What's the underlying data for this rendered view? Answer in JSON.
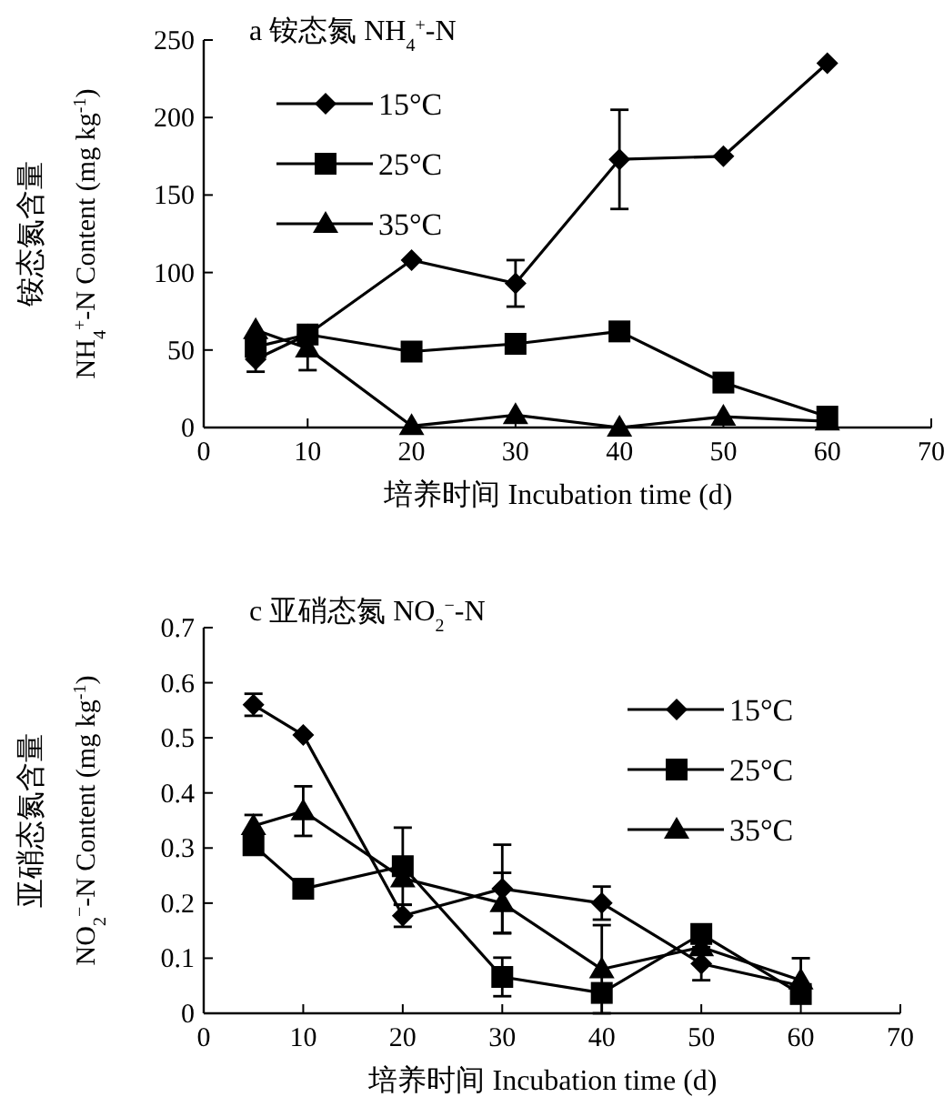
{
  "chart_data": [
    {
      "type": "line",
      "title": "a 铵态氮 NH$_{4}$$^{+}$-N",
      "xlabel": "培养时间 Incubation time (d)",
      "ylabel": "铵态氮含量 NH$_{4}$$^{+}$-N Content (mg kg$^{-1}$)",
      "x": [
        5,
        10,
        20,
        30,
        40,
        50,
        60
      ],
      "xlim": [
        0,
        70
      ],
      "xticks": [
        0,
        10,
        20,
        30,
        40,
        50,
        60,
        70
      ],
      "ylim": [
        0,
        250
      ],
      "yticks": [
        0,
        50,
        100,
        150,
        200,
        250
      ],
      "legend": "top left",
      "grid": false,
      "series": [
        {
          "name": "15°C",
          "color": "#000000",
          "marker": "diamond",
          "values": [
            44,
            60,
            108,
            93,
            173,
            175,
            235
          ],
          "errors": [
            8,
            null,
            null,
            15,
            32,
            null,
            null
          ]
        },
        {
          "name": "25°C",
          "color": "#000000",
          "marker": "square",
          "values": [
            52,
            60,
            49,
            54,
            62,
            29,
            7
          ],
          "errors": [
            null,
            null,
            null,
            null,
            null,
            null,
            null
          ]
        },
        {
          "name": "35°C",
          "color": "#000000",
          "marker": "triangle",
          "values": [
            63,
            51,
            1,
            8,
            0,
            7,
            4
          ],
          "errors": [
            null,
            14,
            null,
            null,
            null,
            null,
            null
          ]
        }
      ]
    },
    {
      "type": "line",
      "title": "c 亚硝态氮 NO$_{2}$$^{−}$-N",
      "xlabel": "培养时间 Incubation time (d)",
      "ylabel": "亚硝态氮含量 NO$_{2}$$^{−}$-N Content (mg kg$^{-1}$)",
      "x": [
        5,
        10,
        20,
        30,
        40,
        50,
        60
      ],
      "xlim": [
        0,
        70
      ],
      "xticks": [
        0,
        10,
        20,
        30,
        40,
        50,
        60,
        70
      ],
      "ylim": [
        0,
        0.7
      ],
      "yticks": [
        0,
        0.1,
        0.2,
        0.3,
        0.4,
        0.5,
        0.6,
        0.7
      ],
      "legend": "top right",
      "grid": false,
      "series": [
        {
          "name": "15°C",
          "color": "#000000",
          "marker": "diamond",
          "values": [
            0.56,
            0.505,
            0.177,
            0.226,
            0.2,
            0.09,
            0.05
          ],
          "errors": [
            0.02,
            null,
            0.02,
            0.08,
            0.03,
            0.03,
            null
          ]
        },
        {
          "name": "25°C",
          "color": "#000000",
          "marker": "square",
          "values": [
            0.305,
            0.226,
            0.267,
            0.066,
            0.037,
            0.144,
            0.035
          ],
          "errors": [
            null,
            null,
            0.07,
            0.035,
            null,
            null,
            null
          ]
        },
        {
          "name": "35°C",
          "color": "#000000",
          "marker": "triangle",
          "values": [
            0.34,
            0.367,
            0.245,
            0.2,
            0.08,
            0.12,
            0.06
          ],
          "errors": [
            0.02,
            0.045,
            null,
            0.055,
            0.08,
            null,
            0.04
          ]
        }
      ]
    }
  ]
}
